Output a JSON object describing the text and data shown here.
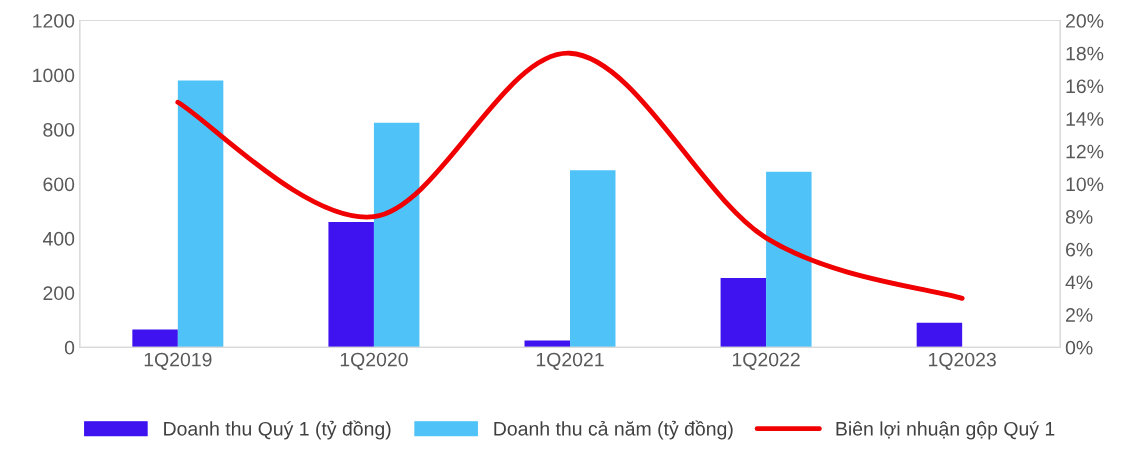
{
  "chart_data": {
    "type": "bar",
    "categories": [
      "1Q2019",
      "1Q2020",
      "1Q2021",
      "1Q2022",
      "1Q2023"
    ],
    "series": [
      {
        "name": "Doanh thu Quý 1 (tỷ đồng)",
        "color": "#3f12f0",
        "values": [
          65,
          460,
          25,
          255,
          90
        ]
      },
      {
        "name": "Doanh thu cả năm (tỷ đồng)",
        "color": "#4fc3f7",
        "values": [
          980,
          825,
          650,
          645,
          null
        ]
      },
      {
        "name": "Biên lợi nhuận gộp Quý 1",
        "type": "line",
        "axis": "y2",
        "color": "#f00000",
        "values": [
          15.0,
          8.0,
          18.0,
          6.7,
          3.0
        ]
      }
    ],
    "ylim": [
      0,
      1200
    ],
    "yticks": [
      0,
      200,
      400,
      600,
      800,
      1000,
      1200
    ],
    "y2lim": [
      0,
      20
    ],
    "y2ticks": [
      {
        "value": 0,
        "label": "0%"
      },
      {
        "value": 2,
        "label": "2%"
      },
      {
        "value": 4,
        "label": "4%"
      },
      {
        "value": 6,
        "label": "6%"
      },
      {
        "value": 8,
        "label": "8%"
      },
      {
        "value": 10,
        "label": "10%"
      },
      {
        "value": 12,
        "label": "12%"
      },
      {
        "value": 14,
        "label": "14%"
      },
      {
        "value": 16,
        "label": "16%"
      },
      {
        "value": 18,
        "label": "18%"
      },
      {
        "value": 20,
        "label": "20%"
      }
    ],
    "grid": false,
    "legend": "bottom",
    "marker": "none",
    "line_style": "solid"
  }
}
